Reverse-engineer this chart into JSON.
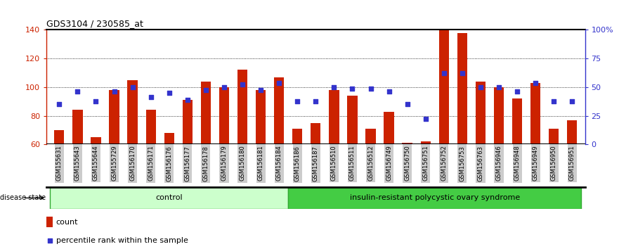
{
  "title": "GDS3104 / 230585_at",
  "samples": [
    "GSM155631",
    "GSM155643",
    "GSM155644",
    "GSM155729",
    "GSM156170",
    "GSM156171",
    "GSM156176",
    "GSM156177",
    "GSM156178",
    "GSM156179",
    "GSM156180",
    "GSM156181",
    "GSM156184",
    "GSM156186",
    "GSM156187",
    "GSM156510",
    "GSM156511",
    "GSM156512",
    "GSM156749",
    "GSM156750",
    "GSM156751",
    "GSM156752",
    "GSM156753",
    "GSM156763",
    "GSM156946",
    "GSM156948",
    "GSM156949",
    "GSM156950",
    "GSM156951"
  ],
  "bar_values": [
    70,
    84,
    65,
    98,
    105,
    84,
    68,
    91,
    104,
    100,
    112,
    98,
    107,
    71,
    75,
    98,
    94,
    71,
    83,
    61,
    62,
    140,
    138,
    104,
    100,
    92,
    103,
    71,
    77
  ],
  "percentile_values": [
    88,
    97,
    90,
    97,
    100,
    93,
    96,
    91,
    98,
    100,
    102,
    98,
    103,
    90,
    90,
    100,
    99,
    99,
    97,
    88,
    78,
    110,
    110,
    100,
    100,
    97,
    103,
    90,
    90
  ],
  "control_count": 13,
  "disease_count": 16,
  "group1_label": "control",
  "group2_label": "insulin-resistant polycystic ovary syndrome",
  "ylim_left": [
    60,
    140
  ],
  "ylim_right": [
    0,
    100
  ],
  "yticks_left": [
    60,
    80,
    100,
    120,
    140
  ],
  "ytick_right_labels": [
    "0",
    "25",
    "50",
    "75",
    "100%"
  ],
  "bar_color": "#CC2200",
  "dot_color": "#3333CC",
  "bar_bottom": 60,
  "left_axis_color": "#CC2200",
  "right_axis_color": "#3333CC",
  "group1_bg": "#CCFFCC",
  "group2_bg": "#44CC44",
  "tick_bg": "#CCCCCC"
}
